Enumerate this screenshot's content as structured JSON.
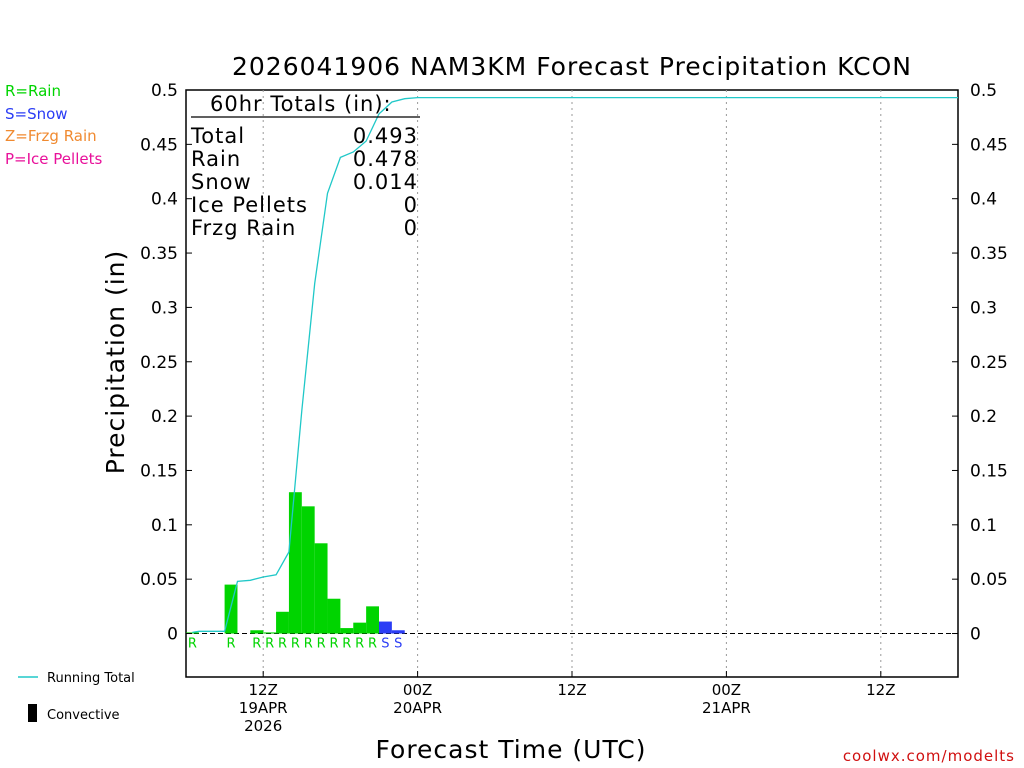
{
  "chart_data": {
    "type": "bar",
    "title": "2026041906 NAM3KM Forecast Precipitation KCON",
    "xlabel": "Forecast Time (UTC)",
    "ylabel": "Precipitation (in)",
    "ylim": [
      -0.04,
      0.5
    ],
    "yticks": [
      "0",
      "0.05",
      "0.1",
      "0.15",
      "0.2",
      "0.25",
      "0.3",
      "0.35",
      "0.4",
      "0.45",
      "0.5"
    ],
    "xticks": [
      {
        "hour": 12,
        "label": "12Z",
        "sub1": "19APR",
        "sub2": "2026"
      },
      {
        "hour": 24,
        "label": "00Z",
        "sub1": "20APR",
        "sub2": ""
      },
      {
        "hour": 36,
        "label": "12Z",
        "sub1": "",
        "sub2": ""
      },
      {
        "hour": 48,
        "label": "00Z",
        "sub1": "21APR",
        "sub2": ""
      },
      {
        "hour": 60,
        "label": "12Z",
        "sub1": "",
        "sub2": ""
      }
    ],
    "xrange_hours": [
      6,
      66
    ],
    "grid": "vertical dotted at tick hours",
    "hourly": [
      {
        "hour": 7,
        "value": 0.001,
        "type": "R",
        "color": "#00d400"
      },
      {
        "hour": 10,
        "value": 0.045,
        "type": "R",
        "color": "#00d400"
      },
      {
        "hour": 12,
        "value": 0.003,
        "type": "R",
        "color": "#00d400"
      },
      {
        "hour": 13,
        "value": 0.001,
        "type": "R",
        "color": "#00d400"
      },
      {
        "hour": 14,
        "value": 0.02,
        "type": "R",
        "color": "#00d400"
      },
      {
        "hour": 15,
        "value": 0.13,
        "type": "R",
        "color": "#00d400"
      },
      {
        "hour": 16,
        "value": 0.117,
        "type": "R",
        "color": "#00d400"
      },
      {
        "hour": 17,
        "value": 0.083,
        "type": "R",
        "color": "#00d400"
      },
      {
        "hour": 18,
        "value": 0.032,
        "type": "R",
        "color": "#00d400"
      },
      {
        "hour": 19,
        "value": 0.005,
        "type": "R",
        "color": "#00d400"
      },
      {
        "hour": 20,
        "value": 0.01,
        "type": "R",
        "color": "#00d400"
      },
      {
        "hour": 21,
        "value": 0.025,
        "type": "R",
        "color": "#00d400"
      },
      {
        "hour": 22,
        "value": 0.011,
        "type": "S",
        "color": "#2a3cf5"
      },
      {
        "hour": 23,
        "value": 0.003,
        "type": "S",
        "color": "#2a3cf5"
      }
    ],
    "running_total": {
      "name": "Running Total",
      "color": "#20c8c8",
      "points": [
        [
          6.5,
          0.001
        ],
        [
          7,
          0.002
        ],
        [
          8,
          0.002
        ],
        [
          9,
          0.002
        ],
        [
          10,
          0.048
        ],
        [
          11,
          0.049
        ],
        [
          12,
          0.052
        ],
        [
          13,
          0.054
        ],
        [
          14,
          0.075
        ],
        [
          15,
          0.205
        ],
        [
          16,
          0.322
        ],
        [
          17,
          0.405
        ],
        [
          18,
          0.438
        ],
        [
          19,
          0.443
        ],
        [
          20,
          0.453
        ],
        [
          21,
          0.478
        ],
        [
          22,
          0.489
        ],
        [
          23,
          0.492
        ],
        [
          24,
          0.493
        ],
        [
          66,
          0.493
        ]
      ]
    },
    "zero_line": "dashed",
    "totals_box": {
      "header": "60hr Totals (in):",
      "rows": [
        {
          "label": "Total",
          "value": "0.493"
        },
        {
          "label": "Rain",
          "value": "0.478"
        },
        {
          "label": "Snow",
          "value": "0.014"
        },
        {
          "label": "Ice Pellets",
          "value": "0"
        },
        {
          "label": "Frzg Rain",
          "value": "0"
        }
      ]
    },
    "ptype_legend": [
      {
        "text": "R=Rain",
        "color": "#00d400"
      },
      {
        "text": "S=Snow",
        "color": "#2a3cf5"
      },
      {
        "text": "Z=Frzg Rain",
        "color": "#f08a30"
      },
      {
        "text": "P=Ice Pellets",
        "color": "#e8109a"
      }
    ],
    "bottom_legend": [
      {
        "text": "Running Total",
        "symbol": "line",
        "color": "#20c8c8"
      },
      {
        "text": "Convective",
        "symbol": "bar",
        "color": "#000000"
      }
    ],
    "credit": {
      "text": "coolwx.com/modelts",
      "color": "#d01010"
    }
  }
}
